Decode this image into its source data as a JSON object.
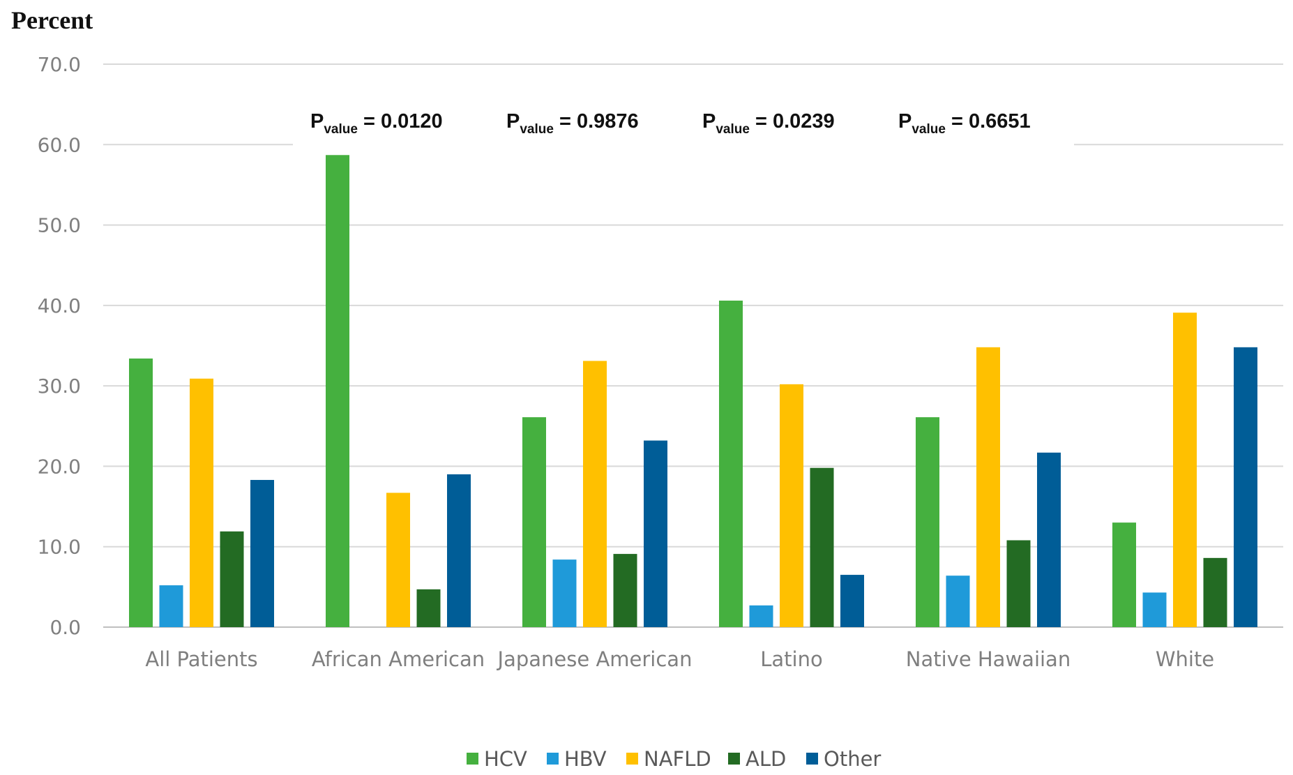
{
  "chart_data": {
    "type": "bar",
    "ylabel": "Percent",
    "ylim": [
      0,
      70
    ],
    "yticks": [
      "0.0",
      "10.0",
      "20.0",
      "30.0",
      "40.0",
      "50.0",
      "60.0",
      "70.0"
    ],
    "grid": true,
    "legend_position": "bottom",
    "categories": [
      "All Patients",
      "African American",
      "Japanese American",
      "Latino",
      "Native Hawaiian",
      "White"
    ],
    "series": [
      {
        "name": "HCV",
        "color": "#45b03f",
        "values": [
          33.4,
          58.7,
          26.1,
          40.6,
          26.1,
          13.0
        ]
      },
      {
        "name": "HBV",
        "color": "#1f9ad9",
        "values": [
          5.2,
          0.0,
          8.4,
          2.7,
          6.4,
          4.3
        ]
      },
      {
        "name": "NAFLD",
        "color": "#ffc000",
        "values": [
          30.9,
          16.7,
          33.1,
          30.2,
          34.8,
          39.1
        ]
      },
      {
        "name": "ALD",
        "color": "#236b23",
        "values": [
          11.9,
          4.7,
          9.1,
          19.8,
          10.8,
          8.6
        ]
      },
      {
        "name": "Other",
        "color": "#005d97",
        "values": [
          18.3,
          19.0,
          23.2,
          6.5,
          21.7,
          34.8
        ]
      }
    ],
    "annotations": [
      {
        "prefix": "P",
        "subscript": "value",
        "text": " = 0.0120"
      },
      {
        "prefix": "P",
        "subscript": "value",
        "text": " = 0.9876"
      },
      {
        "prefix": "P",
        "subscript": "value",
        "text": " = 0.0239"
      },
      {
        "prefix": "P",
        "subscript": "value",
        "text": " = 0.6651"
      }
    ]
  }
}
